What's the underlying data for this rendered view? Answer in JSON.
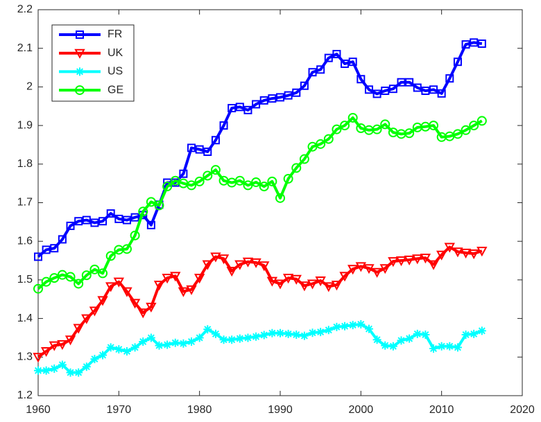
{
  "chart_data": {
    "type": "line",
    "x": [
      1960,
      1961,
      1962,
      1963,
      1964,
      1965,
      1966,
      1967,
      1968,
      1969,
      1970,
      1971,
      1972,
      1973,
      1974,
      1975,
      1976,
      1977,
      1978,
      1979,
      1980,
      1981,
      1982,
      1983,
      1984,
      1985,
      1986,
      1987,
      1988,
      1989,
      1990,
      1991,
      1992,
      1993,
      1994,
      1995,
      1996,
      1997,
      1998,
      1999,
      2000,
      2001,
      2002,
      2003,
      2004,
      2005,
      2006,
      2007,
      2008,
      2009,
      2010,
      2011,
      2012,
      2013,
      2014,
      2015
    ],
    "series": [
      {
        "name": "FR",
        "color": "#0000ff",
        "marker": "square",
        "values": [
          1.56,
          1.578,
          1.582,
          1.605,
          1.64,
          1.652,
          1.655,
          1.648,
          1.652,
          1.672,
          1.658,
          1.655,
          1.662,
          1.668,
          1.642,
          1.695,
          1.752,
          1.752,
          1.775,
          1.842,
          1.838,
          1.832,
          1.862,
          1.9,
          1.945,
          1.948,
          1.94,
          1.955,
          1.965,
          1.97,
          1.973,
          1.978,
          1.985,
          2.003,
          2.038,
          2.045,
          2.075,
          2.085,
          2.06,
          2.065,
          2.02,
          1.993,
          1.982,
          1.99,
          1.995,
          2.012,
          2.012,
          1.998,
          1.99,
          1.993,
          1.983,
          2.022,
          2.065,
          2.11,
          2.115,
          2.112
        ]
      },
      {
        "name": "UK",
        "color": "#ff0000",
        "marker": "triangle-down",
        "values": [
          1.3,
          1.315,
          1.33,
          1.333,
          1.345,
          1.375,
          1.4,
          1.42,
          1.447,
          1.483,
          1.495,
          1.47,
          1.44,
          1.415,
          1.43,
          1.487,
          1.505,
          1.51,
          1.47,
          1.475,
          1.505,
          1.54,
          1.56,
          1.555,
          1.523,
          1.54,
          1.547,
          1.545,
          1.537,
          1.497,
          1.49,
          1.505,
          1.502,
          1.485,
          1.49,
          1.498,
          1.483,
          1.487,
          1.51,
          1.528,
          1.535,
          1.53,
          1.52,
          1.53,
          1.548,
          1.55,
          1.552,
          1.555,
          1.557,
          1.54,
          1.565,
          1.585,
          1.573,
          1.57,
          1.568,
          1.575
        ]
      },
      {
        "name": "US",
        "color": "#00ffff",
        "marker": "asterisk",
        "values": [
          1.265,
          1.265,
          1.27,
          1.28,
          1.26,
          1.26,
          1.275,
          1.295,
          1.305,
          1.325,
          1.32,
          1.315,
          1.325,
          1.34,
          1.35,
          1.33,
          1.332,
          1.337,
          1.335,
          1.34,
          1.35,
          1.372,
          1.36,
          1.345,
          1.345,
          1.348,
          1.35,
          1.353,
          1.357,
          1.362,
          1.362,
          1.36,
          1.358,
          1.355,
          1.363,
          1.365,
          1.37,
          1.378,
          1.38,
          1.383,
          1.385,
          1.373,
          1.345,
          1.33,
          1.328,
          1.343,
          1.348,
          1.36,
          1.358,
          1.322,
          1.328,
          1.328,
          1.325,
          1.358,
          1.36,
          1.368
        ]
      },
      {
        "name": "GE",
        "color": "#00ff00",
        "marker": "circle",
        "values": [
          1.477,
          1.495,
          1.505,
          1.513,
          1.508,
          1.49,
          1.512,
          1.527,
          1.517,
          1.562,
          1.578,
          1.58,
          1.615,
          1.677,
          1.702,
          1.693,
          1.742,
          1.757,
          1.75,
          1.745,
          1.755,
          1.77,
          1.785,
          1.757,
          1.752,
          1.757,
          1.745,
          1.753,
          1.742,
          1.755,
          1.712,
          1.762,
          1.79,
          1.813,
          1.845,
          1.852,
          1.865,
          1.89,
          1.9,
          1.92,
          1.893,
          1.888,
          1.89,
          1.903,
          1.882,
          1.878,
          1.88,
          1.895,
          1.897,
          1.9,
          1.87,
          1.872,
          1.878,
          1.888,
          1.9,
          1.912
        ]
      }
    ],
    "xlim": [
      1960,
      2020
    ],
    "xticks": [
      1960,
      1970,
      1980,
      1990,
      2000,
      2010,
      2020
    ],
    "ylim": [
      1.2,
      2.2
    ],
    "yticks": [
      1.2,
      1.3,
      1.4,
      1.5,
      1.6,
      1.7,
      1.8,
      1.9,
      2,
      2.1,
      2.2
    ],
    "legend": "northwest"
  }
}
